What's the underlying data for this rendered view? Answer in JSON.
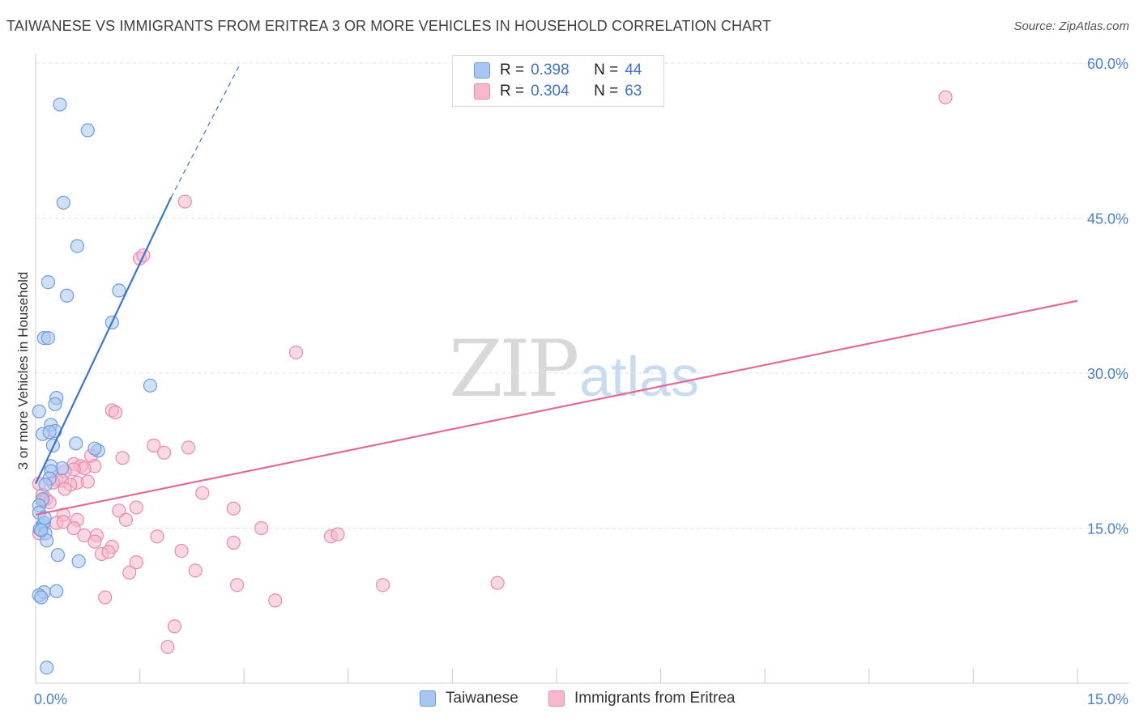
{
  "title": "TAIWANESE VS IMMIGRANTS FROM ERITREA 3 OR MORE VEHICLES IN HOUSEHOLD CORRELATION CHART",
  "source": "Source: ZipAtlas.com",
  "watermark": {
    "zip": "ZIP",
    "atlas": "atlas"
  },
  "legend": {
    "rows": [
      {
        "r_label": "R =",
        "r_value": "0.398",
        "n_label": "N =",
        "n_value": "44"
      },
      {
        "r_label": "R =",
        "r_value": "0.304",
        "n_label": "N =",
        "n_value": "63"
      }
    ]
  },
  "colors": {
    "taiwanese_fill": "#a9c6f0",
    "taiwanese_stroke": "#6d9be0",
    "taiwanese_line": "#3a74cf",
    "eritrea_fill": "#f6b8cc",
    "eritrea_stroke": "#e98aa9",
    "eritrea_line": "#e06b96",
    "tick_text": "#4a7fcb",
    "grid": "#e2e2e2"
  },
  "chart_data": {
    "type": "scatter",
    "title": "TAIWANESE VS IMMIGRANTS FROM ERITREA 3 OR MORE VEHICLES IN HOUSEHOLD CORRELATION CHART",
    "xlabel": "",
    "ylabel": "3 or more Vehicles in Household",
    "xlim": [
      0,
      15
    ],
    "ylim": [
      0,
      60
    ],
    "x_tick_labels": [
      "0.0%",
      "15.0%"
    ],
    "y_ticks": [
      15,
      30,
      45,
      60
    ],
    "y_tick_labels": [
      "15.0%",
      "30.0%",
      "45.0%",
      "60.0%"
    ],
    "grid": true,
    "legend_position": "top-center",
    "series": [
      {
        "name": "Taiwanese",
        "R": 0.398,
        "N": 44,
        "trend": {
          "x": [
            0.0,
            1.95
          ],
          "y": [
            19.3,
            47.0
          ],
          "dashed_extension_to": [
            2.95,
            60.0
          ]
        },
        "points": [
          [
            0.35,
            56.0
          ],
          [
            0.75,
            53.5
          ],
          [
            0.4,
            46.5
          ],
          [
            0.6,
            42.3
          ],
          [
            0.18,
            38.8
          ],
          [
            0.45,
            37.5
          ],
          [
            1.2,
            38.0
          ],
          [
            1.1,
            34.9
          ],
          [
            0.12,
            33.4
          ],
          [
            0.18,
            33.4
          ],
          [
            1.65,
            28.8
          ],
          [
            0.3,
            27.6
          ],
          [
            0.28,
            27.0
          ],
          [
            0.05,
            26.3
          ],
          [
            0.22,
            25.0
          ],
          [
            0.28,
            24.4
          ],
          [
            0.1,
            24.1
          ],
          [
            0.2,
            24.3
          ],
          [
            0.25,
            23.0
          ],
          [
            0.58,
            23.2
          ],
          [
            0.9,
            22.5
          ],
          [
            0.85,
            22.7
          ],
          [
            0.38,
            20.8
          ],
          [
            0.22,
            21.0
          ],
          [
            0.22,
            20.5
          ],
          [
            0.2,
            19.8
          ],
          [
            0.14,
            19.2
          ],
          [
            0.1,
            17.8
          ],
          [
            0.05,
            17.2
          ],
          [
            0.05,
            16.5
          ],
          [
            0.1,
            15.3
          ],
          [
            0.12,
            15.5
          ],
          [
            0.06,
            14.9
          ],
          [
            0.14,
            14.5
          ],
          [
            0.16,
            13.8
          ],
          [
            0.32,
            12.4
          ],
          [
            0.62,
            11.8
          ],
          [
            0.12,
            8.8
          ],
          [
            0.05,
            8.5
          ],
          [
            0.08,
            8.3
          ],
          [
            0.3,
            8.9
          ],
          [
            0.16,
            1.5
          ],
          [
            0.13,
            16.0
          ],
          [
            0.08,
            14.8
          ]
        ]
      },
      {
        "name": "Immigrants from Eritrea",
        "R": 0.304,
        "N": 63,
        "trend": {
          "x": [
            0.0,
            15.0
          ],
          "y": [
            16.3,
            37.0
          ]
        },
        "points": [
          [
            13.1,
            56.7
          ],
          [
            2.15,
            46.6
          ],
          [
            1.5,
            41.1
          ],
          [
            1.55,
            41.4
          ],
          [
            3.75,
            32.0
          ],
          [
            1.1,
            26.4
          ],
          [
            1.15,
            26.2
          ],
          [
            1.7,
            23.0
          ],
          [
            2.2,
            22.8
          ],
          [
            1.85,
            22.3
          ],
          [
            1.25,
            21.8
          ],
          [
            0.8,
            22.0
          ],
          [
            0.55,
            21.2
          ],
          [
            0.65,
            21.0
          ],
          [
            0.85,
            21.0
          ],
          [
            0.7,
            20.8
          ],
          [
            0.55,
            20.7
          ],
          [
            0.42,
            20.5
          ],
          [
            0.3,
            19.7
          ],
          [
            0.38,
            19.6
          ],
          [
            0.6,
            19.4
          ],
          [
            0.75,
            19.5
          ],
          [
            0.5,
            19.2
          ],
          [
            0.25,
            19.4
          ],
          [
            0.05,
            19.3
          ],
          [
            0.1,
            18.2
          ],
          [
            0.42,
            18.8
          ],
          [
            0.1,
            17.6
          ],
          [
            0.15,
            17.8
          ],
          [
            0.2,
            17.5
          ],
          [
            2.4,
            18.4
          ],
          [
            1.45,
            17.0
          ],
          [
            1.2,
            16.7
          ],
          [
            2.85,
            16.9
          ],
          [
            0.4,
            16.3
          ],
          [
            0.6,
            15.8
          ],
          [
            0.3,
            15.5
          ],
          [
            0.4,
            15.6
          ],
          [
            1.3,
            15.8
          ],
          [
            3.25,
            15.0
          ],
          [
            0.55,
            15.0
          ],
          [
            0.7,
            14.3
          ],
          [
            0.88,
            14.3
          ],
          [
            1.75,
            14.2
          ],
          [
            4.25,
            14.2
          ],
          [
            4.35,
            14.4
          ],
          [
            2.85,
            13.6
          ],
          [
            0.85,
            13.7
          ],
          [
            1.1,
            13.2
          ],
          [
            0.95,
            12.5
          ],
          [
            1.05,
            12.7
          ],
          [
            2.1,
            12.8
          ],
          [
            1.45,
            11.7
          ],
          [
            1.35,
            10.7
          ],
          [
            2.3,
            10.9
          ],
          [
            2.9,
            9.5
          ],
          [
            5.0,
            9.5
          ],
          [
            6.65,
            9.7
          ],
          [
            1.0,
            8.3
          ],
          [
            3.45,
            8.0
          ],
          [
            2.0,
            5.5
          ],
          [
            1.9,
            3.5
          ],
          [
            0.05,
            14.5
          ]
        ]
      }
    ]
  },
  "bottom_legend": [
    {
      "label": "Taiwanese"
    },
    {
      "label": "Immigrants from Eritrea"
    }
  ]
}
